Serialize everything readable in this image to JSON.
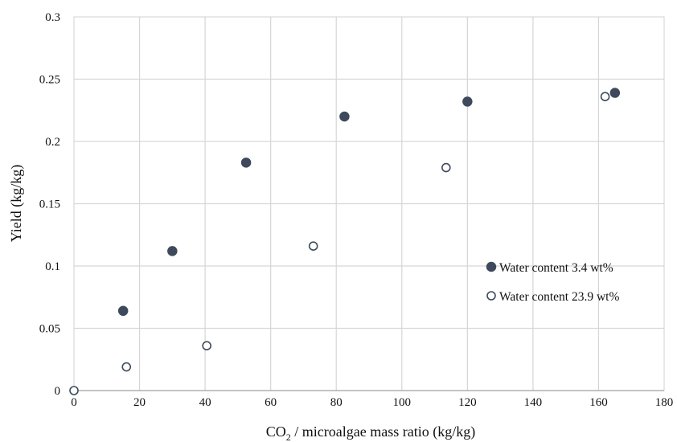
{
  "chart_data": {
    "type": "scatter",
    "title": "",
    "xlabel_main": "CO",
    "xlabel_sub": "2",
    "xlabel_rest": " / microalgae mass ratio (kg/kg)",
    "ylabel": "Yield (kg/kg)",
    "xlim": [
      0,
      180
    ],
    "ylim": [
      0,
      0.3
    ],
    "xticks": [
      0,
      20,
      40,
      60,
      80,
      100,
      120,
      140,
      160,
      180
    ],
    "yticks": [
      0,
      0.05,
      0.1,
      0.15,
      0.2,
      0.25,
      0.3
    ],
    "ytick_labels": [
      "0",
      "0.05",
      "0.1",
      "0.15",
      "0.2",
      "0.25",
      "0.3"
    ],
    "grid": true,
    "legend_position": "right",
    "series": [
      {
        "name": "Water content 3.4 wt%",
        "marker": "filled-circle",
        "color": "#3e4a5c",
        "x": [
          15,
          30,
          52.5,
          82.5,
          120,
          165
        ],
        "y": [
          0.064,
          0.112,
          0.183,
          0.22,
          0.232,
          0.239
        ]
      },
      {
        "name": "Water content 23.9 wt%",
        "marker": "open-circle",
        "color": "#3e4a5c",
        "x": [
          0,
          16,
          40.5,
          73,
          113.5,
          162
        ],
        "y": [
          0,
          0.019,
          0.036,
          0.116,
          0.179,
          0.236
        ]
      }
    ]
  }
}
